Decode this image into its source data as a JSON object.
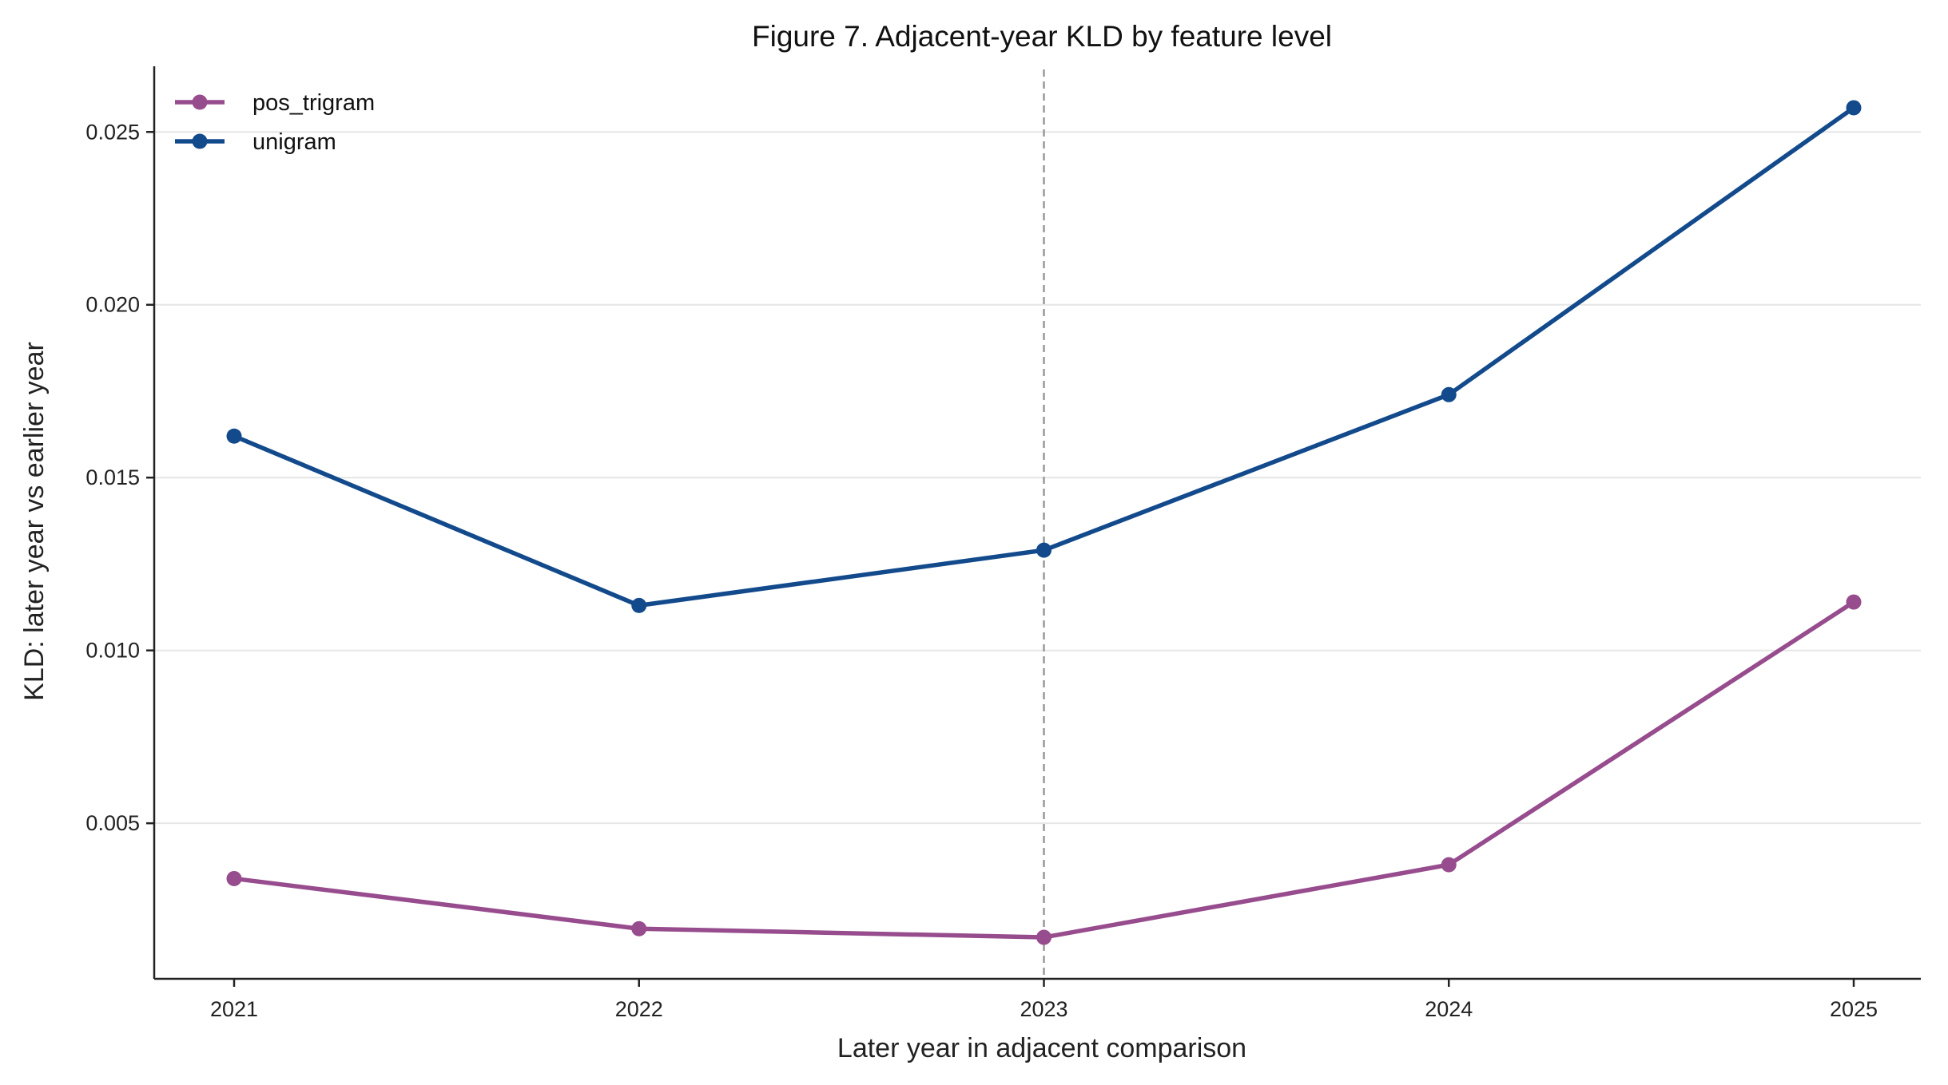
{
  "chart_data": {
    "type": "line",
    "title": "Figure 7. Adjacent-year KLD by feature level",
    "xlabel": "Later year in adjacent comparison",
    "ylabel": "KLD: later year vs earlier year",
    "x": [
      "2021",
      "2022",
      "2023",
      "2024",
      "2025"
    ],
    "ylim": [
      0.0005,
      0.0269
    ],
    "yticks": [
      "0.005",
      "0.010",
      "0.015",
      "0.020",
      "0.025"
    ],
    "grid": "horizontal",
    "legend": "top-left",
    "reference_line": {
      "x": "2023",
      "style": "dashed",
      "color": "#999999"
    },
    "series": [
      {
        "name": "pos_trigram",
        "color": "#974C8E",
        "values": [
          0.0034,
          0.00195,
          0.0017,
          0.0038,
          0.0114
        ]
      },
      {
        "name": "unigram",
        "color": "#124A8C",
        "values": [
          0.0162,
          0.0113,
          0.0129,
          0.0174,
          0.0257
        ]
      }
    ]
  }
}
